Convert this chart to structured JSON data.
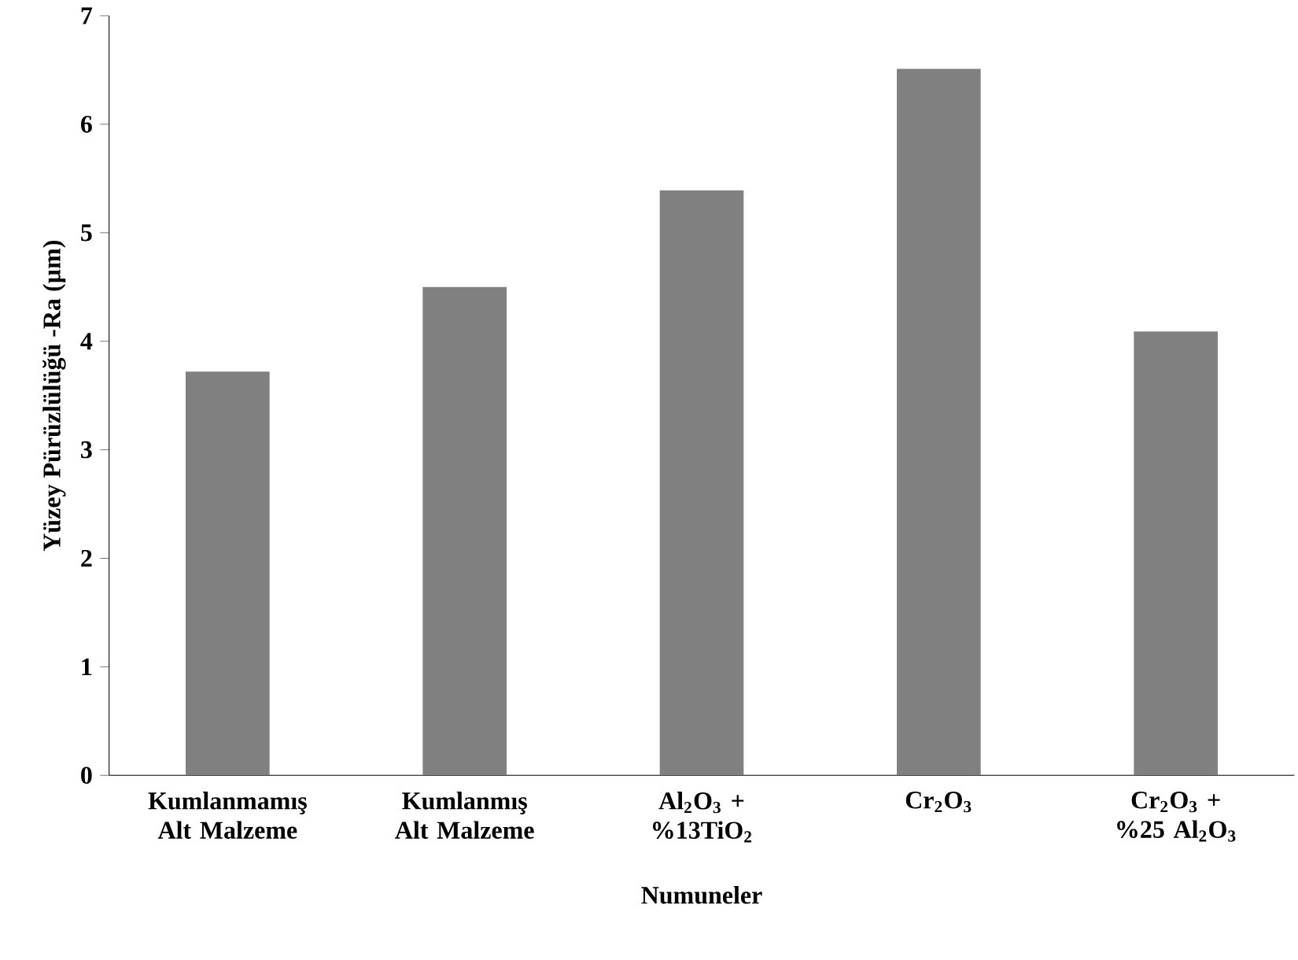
{
  "chart_data": {
    "type": "bar",
    "xlabel": "Numuneler",
    "ylabel": "Yüzey Pürüzlülüğü -Ra (µm)",
    "categories": [
      "Kumlanmamış Alt Malzeme",
      "Kumlanmış Alt Malzeme",
      "Al$_{2}$O$_{3}$ + %13TiO$_{2}$",
      "Cr$_{2}$O$_{3}$",
      "Cr$_{2}$O$_{3}$ + %25 Al$_{2}$O$_{3}$"
    ],
    "values": [
      3.72,
      4.5,
      5.39,
      6.51,
      4.09
    ],
    "color": "#808080",
    "ylim": [
      0,
      7
    ],
    "yticks": [
      0,
      1,
      2,
      3,
      4,
      5,
      6,
      7
    ]
  }
}
